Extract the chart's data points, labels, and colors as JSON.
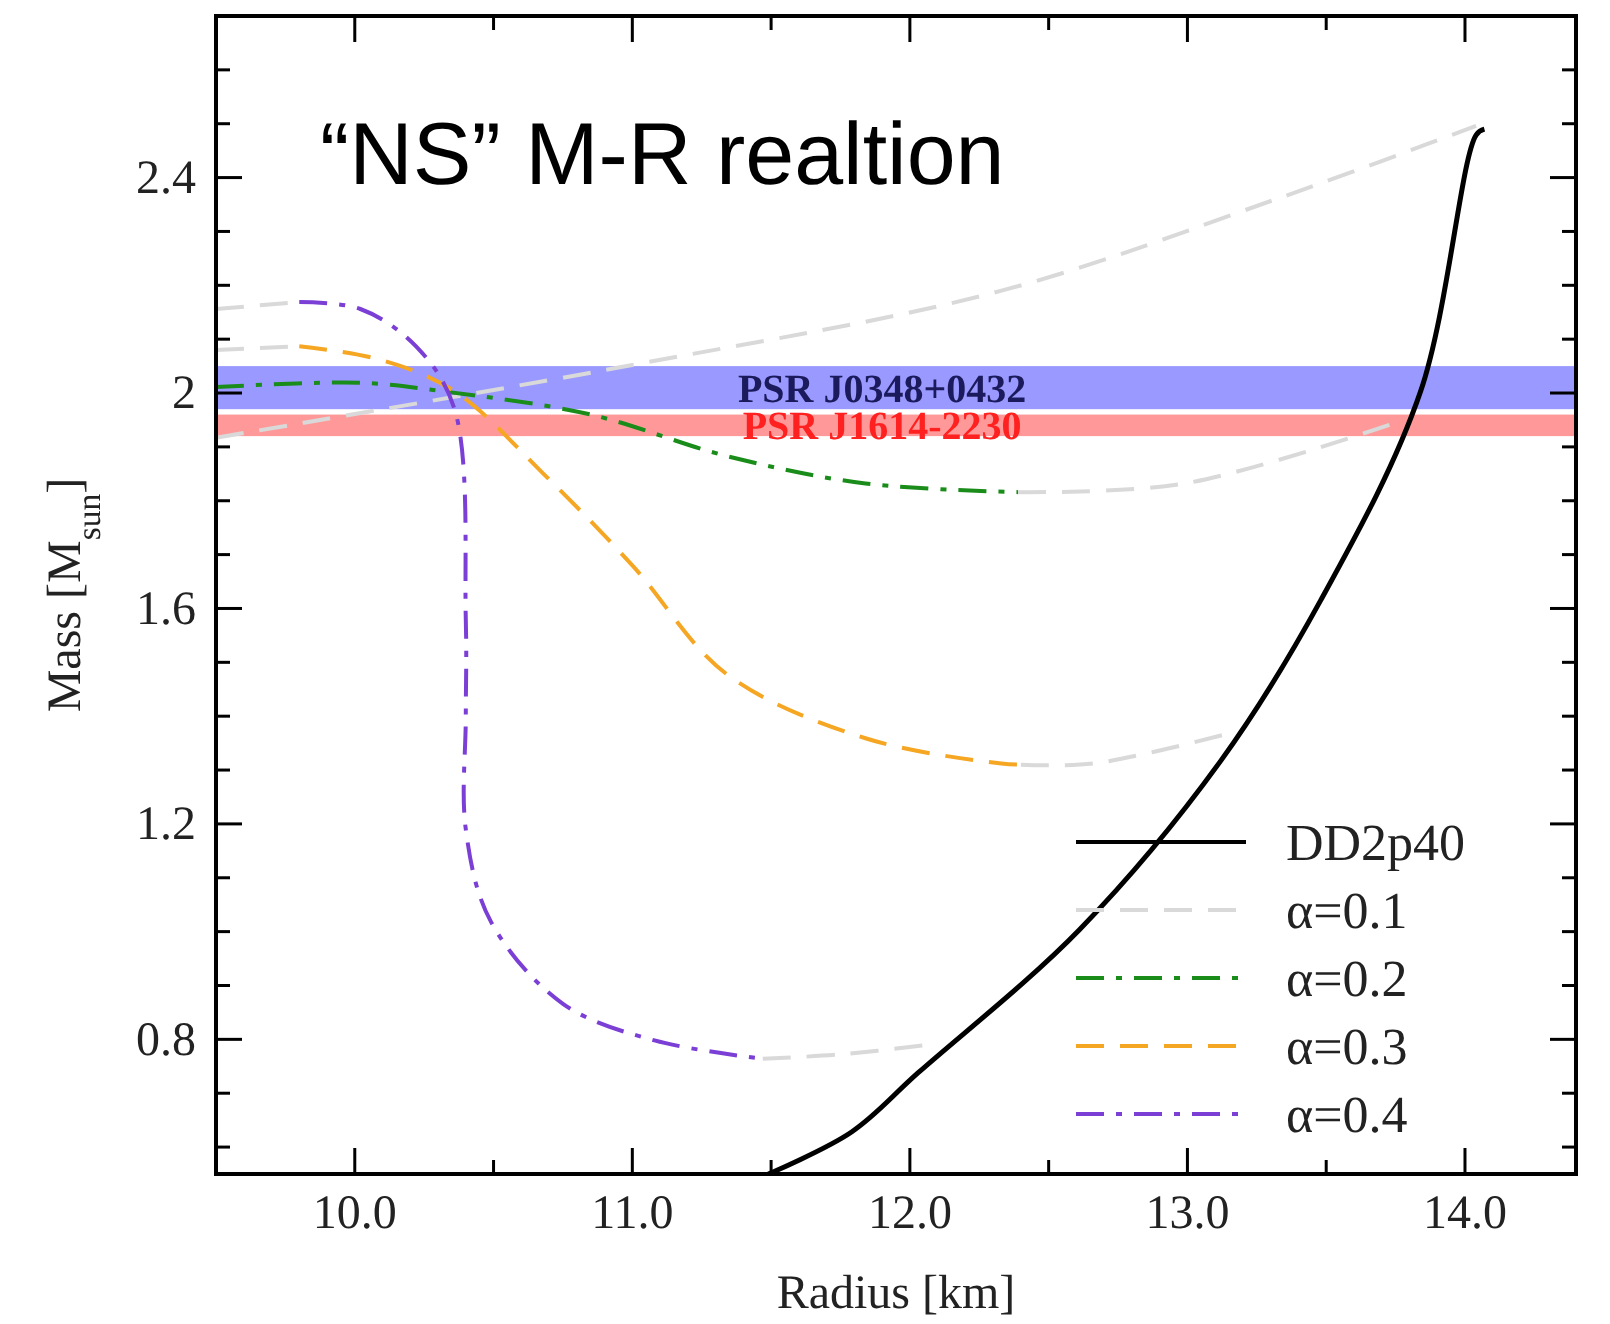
{
  "chart_data": {
    "type": "line",
    "title": "“NS” M-R realtion",
    "xlabel": "Radius [km]",
    "ylabel": "Mass [M$_{sun}$]",
    "xlim": [
      9.5,
      14.4
    ],
    "ylim": [
      0.55,
      2.7
    ],
    "xticks": [
      {
        "value": 10,
        "label": "10.0"
      },
      {
        "value": 10.5,
        "label": null
      },
      {
        "value": 11,
        "label": "11.0"
      },
      {
        "value": 11.5,
        "label": null
      },
      {
        "value": 12,
        "label": "12.0"
      },
      {
        "value": 12.5,
        "label": null
      },
      {
        "value": 13,
        "label": "13.0"
      },
      {
        "value": 13.5,
        "label": null
      },
      {
        "value": 14,
        "label": "14.0"
      }
    ],
    "yticks": [
      {
        "value": 0.6,
        "label": null
      },
      {
        "value": 0.7,
        "label": null
      },
      0.8,
      {
        "value": 0.9,
        "label": null
      },
      {
        "value": 1.0,
        "label": null
      },
      {
        "value": 1.1,
        "label": null
      },
      1.2,
      {
        "value": 1.3,
        "label": null
      },
      {
        "value": 1.4,
        "label": null
      },
      {
        "value": 1.5,
        "label": null
      },
      1.6,
      {
        "value": 1.7,
        "label": null
      },
      {
        "value": 1.8,
        "label": null
      },
      {
        "value": 1.9,
        "label": null
      },
      2,
      {
        "value": 2.1,
        "label": null
      },
      {
        "value": 2.2,
        "label": null
      },
      {
        "value": 2.3,
        "label": null
      },
      2.4,
      {
        "value": 2.5,
        "label": null
      },
      {
        "value": 2.6,
        "label": null
      }
    ],
    "legend": "bottom right",
    "bands": [
      {
        "axis": "y",
        "from": 1.97,
        "to": 2.05,
        "label": "PSR J0348+0432",
        "color": "#9999ff"
      },
      {
        "axis": "y",
        "from": 1.92,
        "to": 1.96,
        "label": "PSR J1614-2230",
        "color": "#ff9999"
      }
    ],
    "series": [
      {
        "name": "DD2p40",
        "color": "#000000",
        "line_style": "solid",
        "x": [
          11.49,
          11.79,
          12.03,
          12.61,
          13.12,
          13.48,
          13.84,
          14.04,
          14.07
        ],
        "values": [
          0.55,
          0.628,
          0.738,
          1.003,
          1.317,
          1.615,
          2.003,
          2.479,
          2.49
        ]
      },
      {
        "name": "α=0.1",
        "color": "#d9d9d9",
        "line_style": "dashed",
        "x": [
          9.5,
          11.01,
          12.33,
          13.32,
          14.04
        ],
        "values": [
          1.917,
          2.053,
          2.19,
          2.36,
          2.496
        ]
      },
      {
        "name": "α=0.2",
        "color": "#1a8c1a",
        "line_style": "dashdot",
        "x": [
          9.5,
          10.02,
          10.32,
          10.85,
          11.34,
          11.84,
          12.39
        ],
        "values": [
          2.011,
          2.019,
          2.003,
          1.96,
          1.883,
          1.832,
          1.816
        ]
      },
      {
        "name": "α=0.3",
        "color": "#f5a623",
        "line_style": "dashed",
        "x": [
          9.8,
          10.09,
          10.36,
          10.68,
          11.0,
          11.34,
          11.84,
          12.33,
          12.4
        ],
        "values": [
          2.087,
          2.062,
          2.003,
          1.85,
          1.68,
          1.478,
          1.359,
          1.312,
          1.31
        ]
      },
      {
        "name": "α=0.4",
        "color": "#7b3fd6",
        "line_style": "dashdot",
        "x": [
          9.8,
          10.02,
          10.22,
          10.36,
          10.4,
          10.4,
          10.4,
          10.49,
          10.75,
          11.08,
          11.47
        ],
        "values": [
          2.169,
          2.156,
          2.087,
          1.969,
          1.58,
          1.4,
          1.19,
          1.019,
          0.866,
          0.798,
          0.764
        ]
      },
      {
        "color": "#d9d9d9",
        "line_style": "dashed",
        "x": [
          12.39,
          12.99,
          13.78
        ],
        "values": [
          1.816,
          1.832,
          1.95
        ]
      },
      {
        "color": "#d9d9d9",
        "line_style": "dashed",
        "x": [
          12.4,
          12.66,
          13.15
        ],
        "values": [
          1.31,
          1.312,
          1.368
        ]
      },
      {
        "color": "#d9d9d9",
        "line_style": "dashed",
        "x": [
          11.47,
          11.75,
          12.07
        ],
        "values": [
          0.764,
          0.772,
          0.79
        ]
      },
      {
        "color": "#d9d9d9",
        "line_style": "dashed",
        "x": [
          9.5,
          9.8
        ],
        "values": [
          2.156,
          2.169
        ]
      },
      {
        "color": "#d9d9d9",
        "line_style": "dashed",
        "x": [
          9.5,
          9.8
        ],
        "values": [
          2.08,
          2.087
        ]
      }
    ]
  }
}
